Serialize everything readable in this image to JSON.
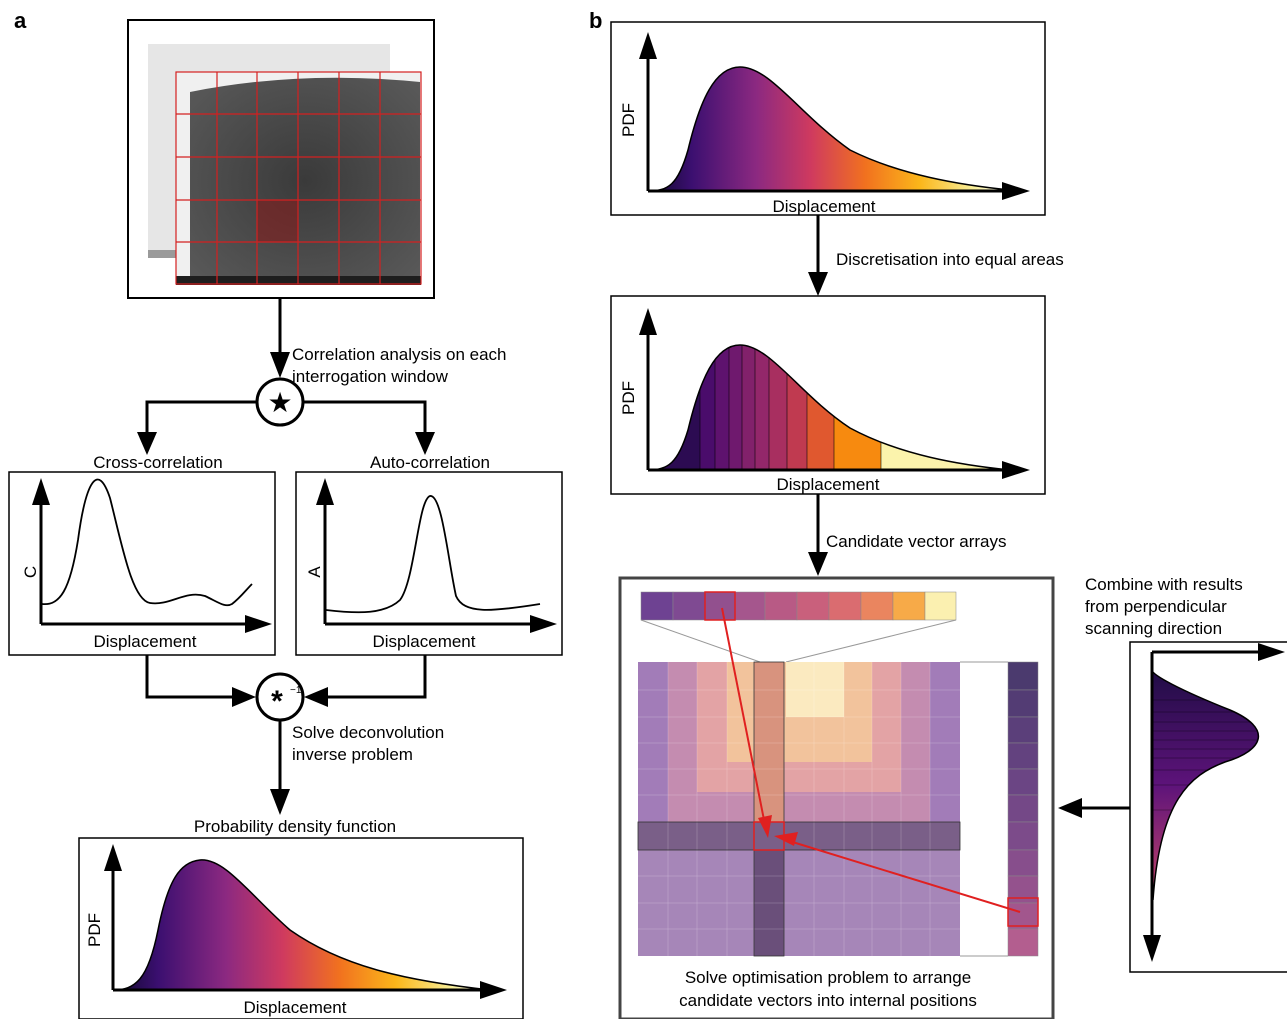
{
  "panel_a": {
    "label": "a",
    "step_correlation": [
      "Correlation analysis on each",
      "interrogation window"
    ],
    "correlation_symbol": "★",
    "cross_title": "Cross-correlation",
    "cross_ylabel": "C",
    "cross_xlabel": "Displacement",
    "auto_title": "Auto-correlation",
    "auto_ylabel": "A",
    "auto_xlabel": "Displacement",
    "deconv_symbol": "*",
    "deconv_exponent": "−1",
    "step_deconvolution": [
      "Solve deconvolution",
      "inverse problem"
    ],
    "pdf_title": "Probability density function",
    "pdf_ylabel": "PDF",
    "pdf_xlabel": "Displacement"
  },
  "panel_b": {
    "label": "b",
    "pdf1_ylabel": "PDF",
    "pdf1_xlabel": "Displacement",
    "step_discretisation": "Discretisation into equal areas",
    "pdf2_ylabel": "PDF",
    "pdf2_xlabel": "Displacement",
    "step_candidates": "Candidate vector arrays",
    "combine_note": [
      "Combine with results",
      "from perpendicular",
      "scanning direction"
    ],
    "optimisation_note": [
      "Solve optimisation problem to arrange",
      "candidate vectors into internal positions"
    ]
  },
  "colors": {
    "highlight_red": "#e02020",
    "inferno_ramp": [
      "#1b0c41",
      "#4a0c6b",
      "#781c6d",
      "#a52c60",
      "#cf4446",
      "#ed6925",
      "#fb9b06",
      "#f7d13d",
      "#fcffa4"
    ]
  }
}
